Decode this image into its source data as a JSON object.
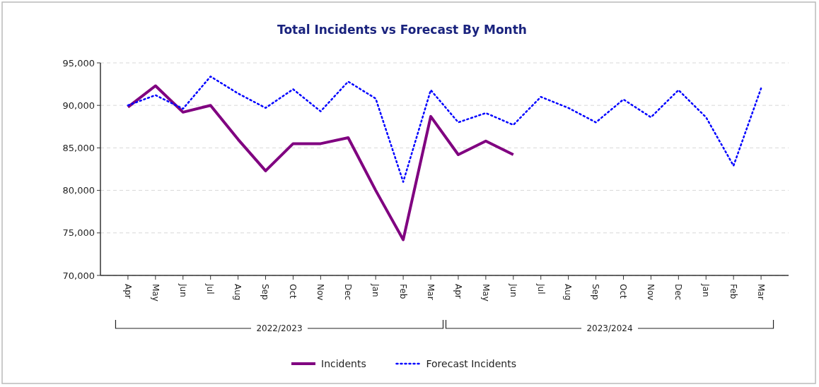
{
  "chart_data": {
    "type": "line",
    "title": "Total Incidents vs Forecast By Month",
    "categories": [
      "Apr",
      "May",
      "Jun",
      "Jul",
      "Aug",
      "Sep",
      "Oct",
      "Nov",
      "Dec",
      "Jan",
      "Feb",
      "Mar",
      "Apr",
      "May",
      "Jun",
      "Jul",
      "Aug",
      "Sep",
      "Oct",
      "Nov",
      "Dec",
      "Jan",
      "Feb",
      "Mar"
    ],
    "series": [
      {
        "name": "Incidents",
        "color": "#800080",
        "line_style": "solid",
        "values": [
          89800,
          92300,
          89200,
          90000,
          86000,
          82300,
          85500,
          85500,
          86200,
          80000,
          74200,
          88700,
          84200,
          85800,
          84200,
          null,
          null,
          null,
          null,
          null,
          null,
          null,
          null,
          null
        ]
      },
      {
        "name": "Forecast Incidents",
        "color": "#0000ff",
        "line_style": "dotted",
        "values": [
          90000,
          91200,
          89600,
          93400,
          91400,
          89700,
          91900,
          89300,
          92800,
          90800,
          81000,
          91800,
          88000,
          89100,
          87700,
          91000,
          89700,
          88000,
          90700,
          88600,
          91800,
          88600,
          82900,
          92000
        ]
      }
    ],
    "ylim": [
      70000,
      95000
    ],
    "yticks": [
      {
        "value": 70000,
        "label": "70,000"
      },
      {
        "value": 75000,
        "label": "75,000"
      },
      {
        "value": 80000,
        "label": "80,000"
      },
      {
        "value": 85000,
        "label": "85,000"
      },
      {
        "value": 90000,
        "label": "90,000"
      },
      {
        "value": 95000,
        "label": "95,000"
      }
    ],
    "annotations": [
      "2022/2023",
      "2023/2024"
    ],
    "grid": "y",
    "legend": "bottom"
  }
}
